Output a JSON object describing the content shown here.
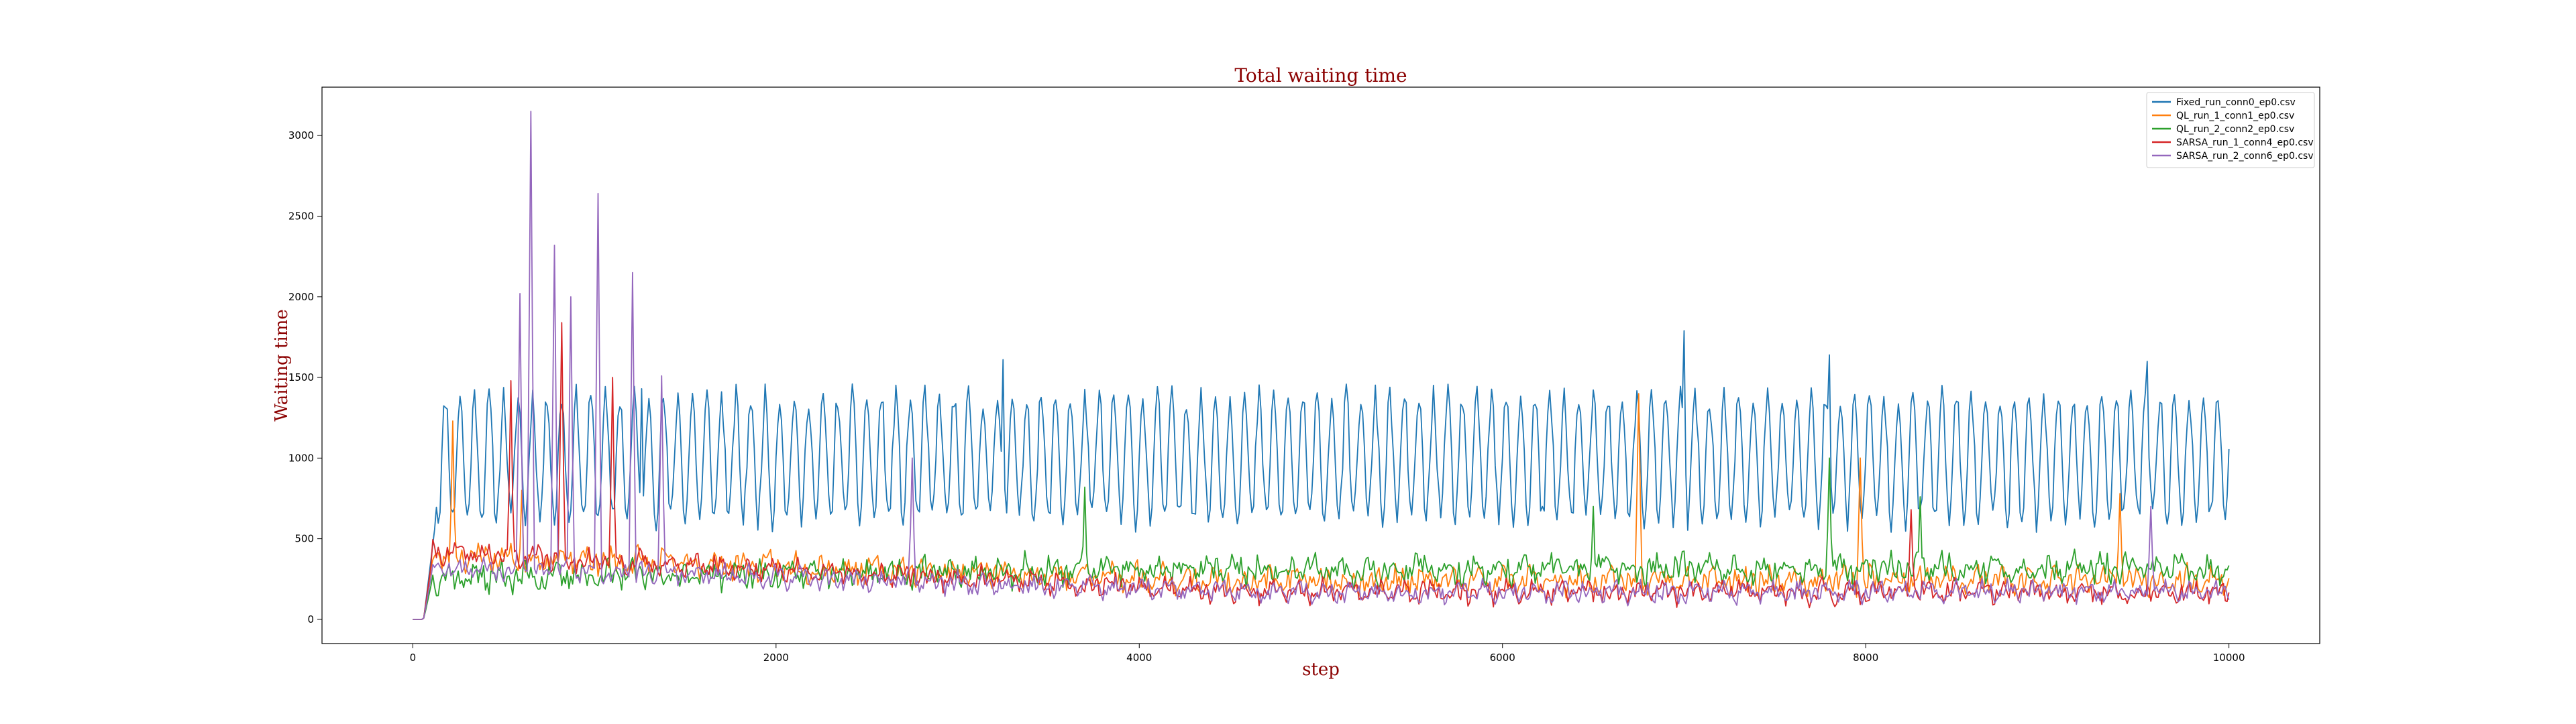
{
  "chart_data": {
    "type": "line",
    "title": "Total waiting time",
    "xlabel": "step",
    "ylabel": "Waiting time",
    "xlim": [
      -500,
      10500
    ],
    "ylim": [
      -150,
      3300
    ],
    "xticks": [
      0,
      2000,
      4000,
      6000,
      8000,
      10000
    ],
    "yticks": [
      0,
      500,
      1000,
      1500,
      2000,
      2500,
      3000
    ],
    "grid": false,
    "legend_position": "top-right",
    "series": [
      {
        "name": "Fixed_run_conn0_ep0.csv",
        "color": "#1f77b4",
        "pattern": {
          "type": "oscillating",
          "base": 1000,
          "amp": 380,
          "period": 80,
          "warmup": 130,
          "noise": 80,
          "seed": 11
        },
        "peaks": [
          [
            1260,
            1430
          ],
          [
            3250,
            1610
          ],
          [
            7000,
            1790
          ],
          [
            7800,
            1640
          ],
          [
            9550,
            1600
          ]
        ]
      },
      {
        "name": "QL_run_1_conn1_ep0.csv",
        "color": "#ff7f0e",
        "pattern": {
          "type": "noisy",
          "start": 400,
          "end": 240,
          "noise": 110,
          "warmup": 110,
          "seed": 23
        },
        "peaks": [
          [
            220,
            1230
          ],
          [
            600,
            800
          ],
          [
            6750,
            1400
          ],
          [
            7970,
            1000
          ],
          [
            9400,
            780
          ]
        ]
      },
      {
        "name": "QL_run_2_conn2_ep0.csv",
        "color": "#2ca02c",
        "pattern": {
          "type": "noisy",
          "start": 260,
          "end": 310,
          "noise": 120,
          "warmup": 110,
          "seed": 37
        },
        "peaks": [
          [
            3700,
            820
          ],
          [
            6500,
            700
          ],
          [
            7800,
            1000
          ],
          [
            8300,
            760
          ]
        ]
      },
      {
        "name": "SARSA_run_1_conn4_ep0.csv",
        "color": "#d62728",
        "pattern": {
          "type": "noisy",
          "start": 420,
          "end": 170,
          "noise": 90,
          "warmup": 110,
          "seed": 41
        },
        "peaks": [
          [
            540,
            1480
          ],
          [
            820,
            1840
          ],
          [
            1100,
            1500
          ],
          [
            8250,
            680
          ]
        ]
      },
      {
        "name": "SARSA_run_2_conn6_ep0.csv",
        "color": "#9467bd",
        "pattern": {
          "type": "noisy",
          "start": 330,
          "end": 170,
          "noise": 85,
          "warmup": 110,
          "seed": 53
        },
        "peaks": [
          [
            590,
            2020
          ],
          [
            650,
            3150
          ],
          [
            780,
            2320
          ],
          [
            870,
            2000
          ],
          [
            1020,
            2640
          ],
          [
            1210,
            2150
          ],
          [
            1370,
            1510
          ],
          [
            2750,
            1000
          ],
          [
            9570,
            700
          ]
        ]
      }
    ]
  }
}
